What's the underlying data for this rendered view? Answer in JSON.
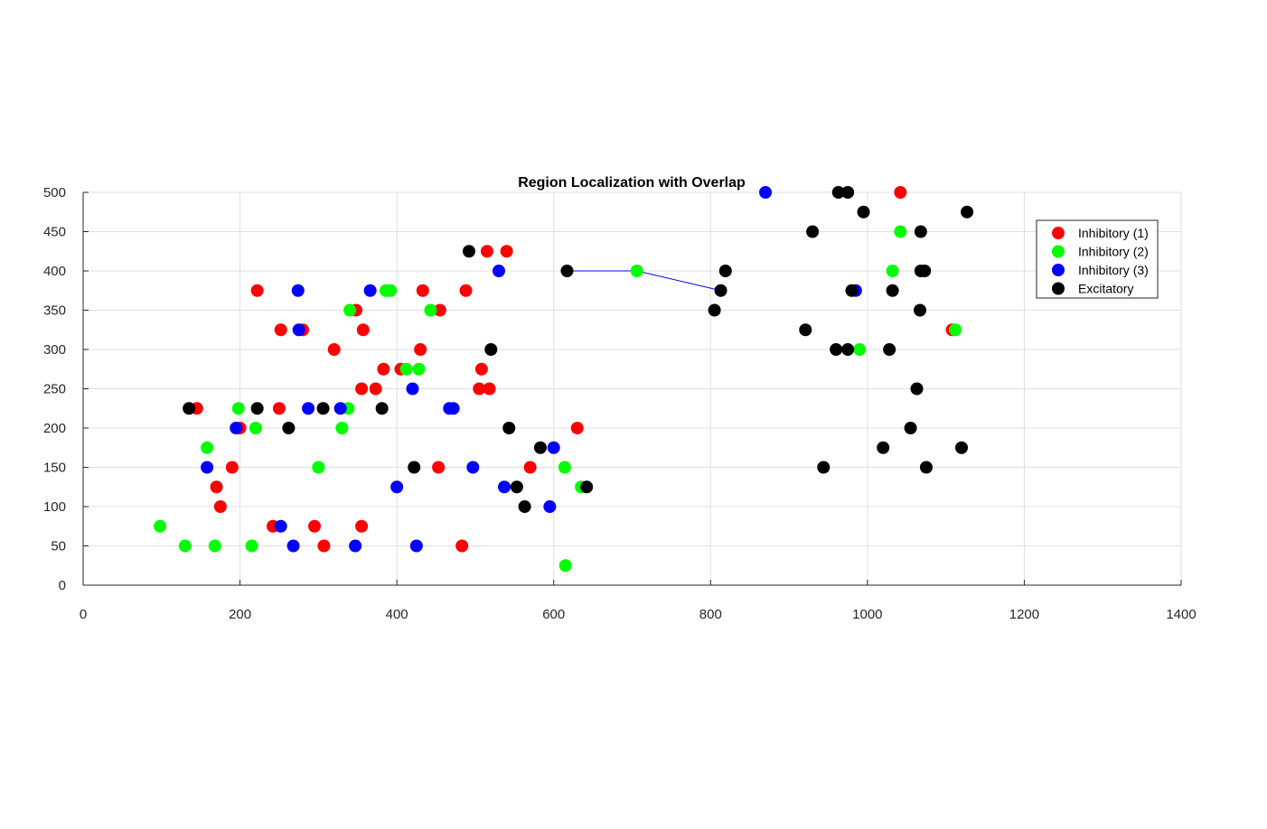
{
  "chart_data": {
    "type": "scatter",
    "title": "Region Localization with Overlap",
    "xlabel": "",
    "ylabel": "",
    "xlim": [
      0,
      1400
    ],
    "ylim": [
      0,
      500
    ],
    "xticks": [
      0,
      200,
      400,
      600,
      800,
      1000,
      1200,
      1400
    ],
    "yticks": [
      0,
      50,
      100,
      150,
      200,
      250,
      300,
      350,
      400,
      450,
      500
    ],
    "grid": true,
    "legend_position": "top-right",
    "series": [
      {
        "name": "Inhibitory (1)",
        "color": "#ff0000",
        "points": [
          [
            145,
            225
          ],
          [
            175,
            100
          ],
          [
            170,
            125
          ],
          [
            190,
            150
          ],
          [
            200,
            200
          ],
          [
            222,
            375
          ],
          [
            242,
            75
          ],
          [
            250,
            225
          ],
          [
            252,
            325
          ],
          [
            280,
            325
          ],
          [
            295,
            75
          ],
          [
            307,
            50
          ],
          [
            320,
            300
          ],
          [
            348,
            350
          ],
          [
            355,
            75
          ],
          [
            355,
            250
          ],
          [
            357,
            325
          ],
          [
            373,
            250
          ],
          [
            383,
            275
          ],
          [
            405,
            275
          ],
          [
            430,
            300
          ],
          [
            433,
            375
          ],
          [
            453,
            150
          ],
          [
            455,
            350
          ],
          [
            483,
            50
          ],
          [
            488,
            375
          ],
          [
            505,
            250
          ],
          [
            508,
            275
          ],
          [
            515,
            425
          ],
          [
            518,
            250
          ],
          [
            540,
            425
          ],
          [
            570,
            150
          ],
          [
            630,
            200
          ],
          [
            1042,
            500
          ],
          [
            1108,
            325
          ]
        ]
      },
      {
        "name": "Inhibitory (2)",
        "color": "#00ff00",
        "points": [
          [
            98,
            75
          ],
          [
            130,
            50
          ],
          [
            158,
            175
          ],
          [
            168,
            50
          ],
          [
            198,
            225
          ],
          [
            215,
            50
          ],
          [
            220,
            200
          ],
          [
            300,
            150
          ],
          [
            330,
            200
          ],
          [
            338,
            225
          ],
          [
            340,
            350
          ],
          [
            386,
            375
          ],
          [
            392,
            375
          ],
          [
            412,
            275
          ],
          [
            428,
            275
          ],
          [
            443,
            350
          ],
          [
            614,
            150
          ],
          [
            615,
            25
          ],
          [
            635,
            125
          ],
          [
            706,
            400
          ],
          [
            990,
            300
          ],
          [
            1032,
            400
          ],
          [
            1042,
            450
          ],
          [
            1112,
            325
          ]
        ]
      },
      {
        "name": "Inhibitory (3)",
        "color": "#0000ff",
        "points": [
          [
            158,
            150
          ],
          [
            195,
            200
          ],
          [
            252,
            75
          ],
          [
            268,
            50
          ],
          [
            274,
            375
          ],
          [
            275,
            325
          ],
          [
            287,
            225
          ],
          [
            328,
            225
          ],
          [
            347,
            50
          ],
          [
            366,
            375
          ],
          [
            400,
            125
          ],
          [
            420,
            250
          ],
          [
            425,
            50
          ],
          [
            467,
            225
          ],
          [
            472,
            225
          ],
          [
            497,
            150
          ],
          [
            530,
            400
          ],
          [
            537,
            125
          ],
          [
            595,
            100
          ],
          [
            600,
            175
          ],
          [
            870,
            500
          ],
          [
            985,
            375
          ]
        ]
      },
      {
        "name": "Excitatory",
        "color": "#000000",
        "points": [
          [
            135,
            225
          ],
          [
            222,
            225
          ],
          [
            262,
            200
          ],
          [
            306,
            225
          ],
          [
            381,
            225
          ],
          [
            422,
            150
          ],
          [
            492,
            425
          ],
          [
            520,
            300
          ],
          [
            543,
            200
          ],
          [
            553,
            125
          ],
          [
            563,
            100
          ],
          [
            583,
            175
          ],
          [
            642,
            125
          ],
          [
            617,
            400
          ],
          [
            805,
            350
          ],
          [
            813,
            375
          ],
          [
            819,
            400
          ],
          [
            921,
            325
          ],
          [
            930,
            450
          ],
          [
            944,
            150
          ],
          [
            960,
            300
          ],
          [
            963,
            500
          ],
          [
            975,
            500
          ],
          [
            975,
            300
          ],
          [
            980,
            375
          ],
          [
            995,
            475
          ],
          [
            1020,
            175
          ],
          [
            1028,
            300
          ],
          [
            1032,
            375
          ],
          [
            1055,
            200
          ],
          [
            1063,
            250
          ],
          [
            1067,
            350
          ],
          [
            1068,
            450
          ],
          [
            1068,
            400
          ],
          [
            1073,
            400
          ],
          [
            1075,
            150
          ],
          [
            1120,
            175
          ],
          [
            1127,
            475
          ]
        ]
      }
    ],
    "connection_line": {
      "color": "#0000ff",
      "points": [
        [
          617,
          400
        ],
        [
          706,
          400
        ],
        [
          813,
          375
        ]
      ]
    }
  }
}
